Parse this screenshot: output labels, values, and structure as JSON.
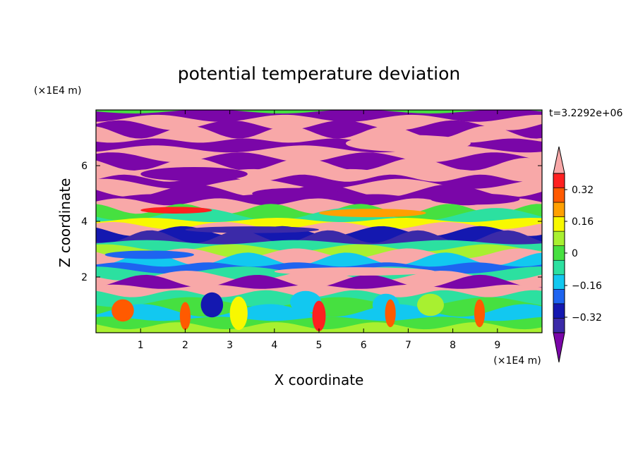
{
  "chart_data": {
    "type": "heatmap",
    "title": "potential temperature deviation",
    "time_label": "t=3.2292e+06",
    "xlabel": "X coordinate",
    "ylabel": "Z coordinate",
    "x_unit": "(×1E4 m)",
    "y_unit": "(×1E4 m)",
    "xlim": [
      0,
      10
    ],
    "ylim": [
      0,
      8
    ],
    "x_ticks": [
      "1",
      "2",
      "3",
      "4",
      "5",
      "6",
      "7",
      "8",
      "9"
    ],
    "y_ticks": [
      "2",
      "4",
      "6"
    ],
    "colorbar": {
      "labels": [
        "0.32",
        "0.16",
        "0",
        "-0.16",
        "-0.32"
      ],
      "label_text": [
        "0.32",
        "0.16",
        "0",
        "−0.16",
        "−0.32"
      ],
      "levels": [
        -0.4,
        -0.32,
        -0.24,
        -0.16,
        -0.08,
        0,
        0.08,
        0.16,
        0.24,
        0.32,
        0.4
      ],
      "colors": [
        "#7a06a8",
        "#3b2aa8",
        "#1418b0",
        "#1e64f0",
        "#12c8f0",
        "#2ce0a0",
        "#46e040",
        "#a8f030",
        "#f8f800",
        "#ffa000",
        "#ff5a00",
        "#ff2020",
        "#f8a8a8"
      ],
      "extend": "both"
    },
    "bands": [
      {
        "z": 7.95,
        "level": 0
      },
      {
        "z": 7.7,
        "level": 12
      },
      {
        "z": 7.45,
        "level": 0
      },
      {
        "z": 7.2,
        "level": 12
      },
      {
        "z": 6.9,
        "level": 0
      },
      {
        "z": 6.6,
        "level": 12
      },
      {
        "z": 6.3,
        "level": 0
      },
      {
        "z": 6.05,
        "level": 12
      },
      {
        "z": 5.8,
        "level": 12
      },
      {
        "z": 5.55,
        "level": 0
      },
      {
        "z": 5.35,
        "level": 12
      },
      {
        "z": 5.1,
        "level": 0
      },
      {
        "z": 4.9,
        "level": 0
      },
      {
        "z": 4.7,
        "level": 12
      },
      {
        "z": 4.45,
        "level": 6
      },
      {
        "z": 4.25,
        "level": 5
      },
      {
        "z": 4.05,
        "level": 8
      },
      {
        "z": 3.85,
        "level": 12
      },
      {
        "z": 3.65,
        "level": 2
      },
      {
        "z": 3.45,
        "level": 1
      },
      {
        "z": 3.25,
        "level": 5
      },
      {
        "z": 3.05,
        "level": 7
      },
      {
        "z": 2.85,
        "level": 12
      },
      {
        "z": 2.65,
        "level": 4
      },
      {
        "z": 2.45,
        "level": 3
      },
      {
        "z": 2.25,
        "level": 5
      },
      {
        "z": 2.05,
        "level": 12
      },
      {
        "z": 1.85,
        "level": 0
      },
      {
        "z": 1.65,
        "level": 12
      },
      {
        "z": 1.4,
        "level": 5
      },
      {
        "z": 1.1,
        "level": 6
      },
      {
        "z": 0.8,
        "level": 4
      },
      {
        "z": 0.5,
        "level": 6
      },
      {
        "z": 0.25,
        "level": 7
      }
    ],
    "blobs": [
      {
        "x": 2.6,
        "z": 1.0,
        "rx": 0.25,
        "rz": 0.45,
        "level": 2
      },
      {
        "x": 4.7,
        "z": 1.1,
        "rx": 0.35,
        "rz": 0.4,
        "level": 4
      },
      {
        "x": 6.5,
        "z": 1.0,
        "rx": 0.3,
        "rz": 0.4,
        "level": 4
      },
      {
        "x": 0.6,
        "z": 0.8,
        "rx": 0.25,
        "rz": 0.4,
        "level": 10
      },
      {
        "x": 2.0,
        "z": 0.6,
        "rx": 0.12,
        "rz": 0.5,
        "level": 10
      },
      {
        "x": 3.2,
        "z": 0.7,
        "rx": 0.2,
        "rz": 0.6,
        "level": 8
      },
      {
        "x": 5.0,
        "z": 0.6,
        "rx": 0.15,
        "rz": 0.55,
        "level": 11
      },
      {
        "x": 6.6,
        "z": 0.7,
        "rx": 0.12,
        "rz": 0.5,
        "level": 10
      },
      {
        "x": 8.6,
        "z": 0.7,
        "rx": 0.12,
        "rz": 0.5,
        "level": 10
      },
      {
        "x": 7.5,
        "z": 1.0,
        "rx": 0.3,
        "rz": 0.4,
        "level": 7
      },
      {
        "x": 2.2,
        "z": 5.7,
        "rx": 1.2,
        "rz": 0.25,
        "level": 0
      },
      {
        "x": 7.0,
        "z": 6.8,
        "rx": 1.4,
        "rz": 0.3,
        "level": 12
      },
      {
        "x": 4.5,
        "z": 5.0,
        "rx": 1.0,
        "rz": 0.2,
        "level": 0
      },
      {
        "x": 8.5,
        "z": 4.8,
        "rx": 1.0,
        "rz": 0.2,
        "level": 0
      },
      {
        "x": 3.5,
        "z": 3.7,
        "rx": 1.5,
        "rz": 0.12,
        "level": 1
      },
      {
        "x": 6.2,
        "z": 4.3,
        "rx": 1.2,
        "rz": 0.15,
        "level": 9
      },
      {
        "x": 1.8,
        "z": 4.4,
        "rx": 0.8,
        "rz": 0.12,
        "level": 11
      },
      {
        "x": 5.8,
        "z": 2.2,
        "rx": 1.8,
        "rz": 0.15,
        "level": 12
      },
      {
        "x": 1.2,
        "z": 2.8,
        "rx": 1.0,
        "rz": 0.15,
        "level": 3
      }
    ]
  }
}
